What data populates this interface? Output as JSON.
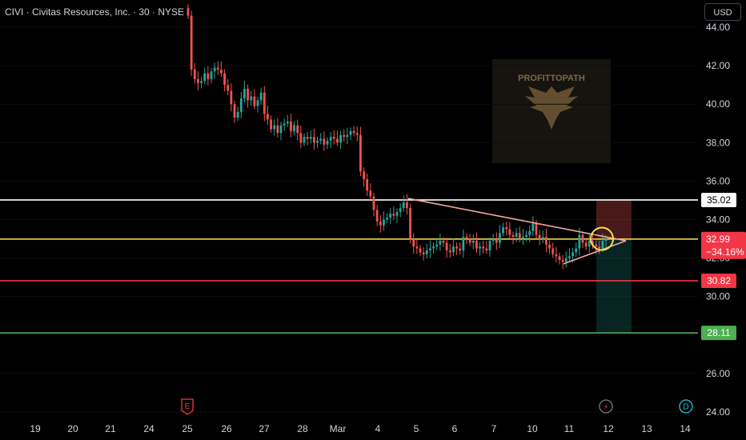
{
  "legend": {
    "symbol": "CIVI",
    "name": "Civitas Resources, Inc.",
    "interval": "30",
    "exchange": "NYSE",
    "text": "CIVI · Civitas Resources, Inc. · 30 · NYSE"
  },
  "currency": "USD",
  "watermark": {
    "text": "PROFITTOPATH",
    "icon": "eagle-icon"
  },
  "colors": {
    "up": "#26a69a",
    "down": "#ef5350",
    "white_line": "#ffffff",
    "yellow_line": "#f0d84a",
    "red_line": "#f23645",
    "green_line": "#4caf50",
    "trendline": "#f7a59c",
    "price_tag_bg": "#f23645"
  },
  "chart_data": {
    "type": "candlestick",
    "title": "",
    "xlabel": "",
    "ylabel": "",
    "ylim": [
      24,
      45.2
    ],
    "y_ticks": [
      24,
      26,
      28,
      30,
      32,
      34,
      36,
      38,
      40,
      42,
      44
    ],
    "y_tick_labels": [
      "24.00",
      "26.00",
      "28.00",
      "30.00",
      "32.00",
      "34.00",
      "36.00",
      "38.00",
      "40.00",
      "42.00",
      "44.00"
    ],
    "x_ticks": [
      "19",
      "20",
      "21",
      "24",
      "25",
      "26",
      "27",
      "28",
      "Mar",
      "4",
      "5",
      "6",
      "7",
      "10",
      "11",
      "12",
      "13",
      "14"
    ],
    "current_price": {
      "value": "32.99",
      "change": "−34.16%"
    },
    "horizontal_levels": [
      {
        "value": 35.02,
        "label": "35.02",
        "color": "#ffffff"
      },
      {
        "value": 32.99,
        "label": "32.99",
        "color": "#f0d84a"
      },
      {
        "value": 30.82,
        "label": "30.82",
        "color": "#f23645"
      },
      {
        "value": 28.11,
        "label": "28.11",
        "color": "#4caf50"
      }
    ],
    "trendlines": [
      {
        "from": {
          "date": "5",
          "price": 35.1
        },
        "to": {
          "date": "12",
          "price": 32.9
        }
      },
      {
        "from": {
          "date": "11",
          "price": 31.7
        },
        "to": {
          "date": "12",
          "price": 32.9
        }
      }
    ],
    "position_box": {
      "entry": 32.99,
      "stop": 35.02,
      "target": 28.11
    },
    "highlight_circle": {
      "date": "11",
      "price": 33.0
    },
    "events": [
      {
        "date": "25",
        "glyph": "E"
      },
      {
        "date": "11",
        "glyph": "⚡"
      },
      {
        "date": "13",
        "glyph": "D"
      }
    ],
    "closes": [
      44.6,
      41.8,
      41.3,
      41.1,
      41.2,
      41.6,
      41.3,
      41.7,
      41.9,
      41.8,
      41.6,
      41.0,
      40.7,
      40.0,
      39.3,
      39.6,
      40.3,
      40.8,
      40.2,
      40.4,
      39.9,
      40.2,
      40.6,
      39.5,
      39.2,
      38.7,
      38.9,
      38.5,
      38.9,
      39.0,
      39.1,
      38.6,
      38.9,
      38.5,
      38.0,
      38.3,
      38.2,
      38.3,
      38.0,
      38.1,
      38.2,
      37.9,
      38.1,
      38.3,
      38.2,
      38.0,
      38.4,
      38.3,
      38.4,
      38.6,
      38.5,
      38.4,
      36.5,
      36.1,
      35.5,
      35.2,
      34.5,
      33.9,
      33.7,
      34.0,
      34.1,
      34.3,
      34.2,
      34.4,
      34.6,
      34.9,
      34.6,
      33.0,
      32.6,
      32.5,
      32.3,
      32.2,
      32.4,
      32.5,
      32.6,
      32.7,
      32.9,
      32.8,
      32.4,
      32.3,
      32.6,
      32.5,
      32.4,
      33.1,
      33.0,
      32.8,
      32.9,
      32.5,
      32.6,
      32.5,
      32.4,
      32.9,
      33.0,
      32.8,
      33.3,
      33.6,
      33.5,
      33.2,
      33.1,
      33.3,
      33.0,
      33.1,
      33.2,
      33.4,
      33.8,
      33.2,
      33.0,
      33.1,
      32.7,
      32.5,
      32.2,
      32.1,
      31.9,
      31.8,
      32.0,
      32.1,
      32.3,
      32.5,
      33.2,
      32.8,
      32.6,
      32.9,
      32.7,
      32.6,
      32.5,
      32.9,
      33.0
    ]
  }
}
